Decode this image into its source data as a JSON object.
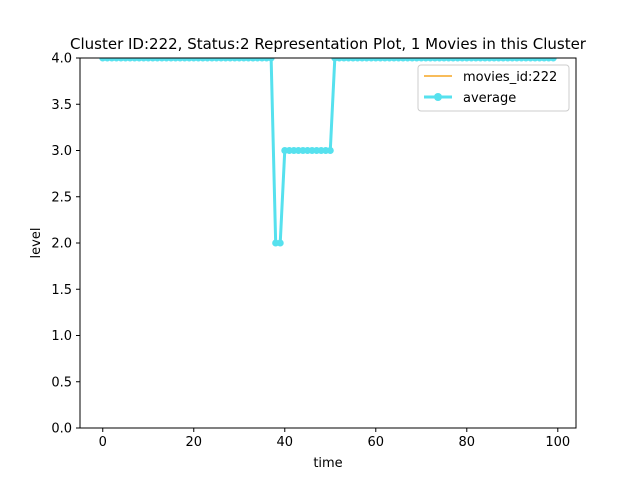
{
  "chart_data": {
    "type": "line",
    "title": "Cluster ID:222, Status:2 Representation Plot, 1 Movies in this Cluster",
    "xlabel": "time",
    "ylabel": "level",
    "xlim": [
      -5,
      104
    ],
    "ylim": [
      0,
      4
    ],
    "xticks": [
      0,
      20,
      40,
      60,
      80,
      100
    ],
    "yticks": [
      0.0,
      0.5,
      1.0,
      1.5,
      2.0,
      2.5,
      3.0,
      3.5,
      4.0
    ],
    "ytick_labels": [
      "0.0",
      "0.5",
      "1.0",
      "1.5",
      "2.0",
      "2.5",
      "3.0",
      "3.5",
      "4.0"
    ],
    "grid": false,
    "legend_position": "top-right",
    "x": [
      0,
      1,
      2,
      3,
      4,
      5,
      6,
      7,
      8,
      9,
      10,
      11,
      12,
      13,
      14,
      15,
      16,
      17,
      18,
      19,
      20,
      21,
      22,
      23,
      24,
      25,
      26,
      27,
      28,
      29,
      30,
      31,
      32,
      33,
      34,
      35,
      36,
      37,
      38,
      39,
      40,
      41,
      42,
      43,
      44,
      45,
      46,
      47,
      48,
      49,
      50,
      51,
      52,
      53,
      54,
      55,
      56,
      57,
      58,
      59,
      60,
      61,
      62,
      63,
      64,
      65,
      66,
      67,
      68,
      69,
      70,
      71,
      72,
      73,
      74,
      75,
      76,
      77,
      78,
      79,
      80,
      81,
      82,
      83,
      84,
      85,
      86,
      87,
      88,
      89,
      90,
      91,
      92,
      93,
      94,
      95,
      96,
      97,
      98,
      99
    ],
    "series": [
      {
        "name": "movies_id:222",
        "color": "#f5a623",
        "marker": "none",
        "linewidth": 1.5,
        "values": [
          4,
          4,
          4,
          4,
          4,
          4,
          4,
          4,
          4,
          4,
          4,
          4,
          4,
          4,
          4,
          4,
          4,
          4,
          4,
          4,
          4,
          4,
          4,
          4,
          4,
          4,
          4,
          4,
          4,
          4,
          4,
          4,
          4,
          4,
          4,
          4,
          4,
          4,
          2,
          2,
          3,
          3,
          3,
          3,
          3,
          3,
          3,
          3,
          3,
          3,
          3,
          4,
          4,
          4,
          4,
          4,
          4,
          4,
          4,
          4,
          4,
          4,
          4,
          4,
          4,
          4,
          4,
          4,
          4,
          4,
          4,
          4,
          4,
          4,
          4,
          4,
          4,
          4,
          4,
          4,
          4,
          4,
          4,
          4,
          4,
          4,
          4,
          4,
          4,
          4,
          4,
          4,
          4,
          4,
          4,
          4,
          4,
          4,
          4,
          4
        ]
      },
      {
        "name": "average",
        "color": "#56e1ee",
        "marker": "circle",
        "linewidth": 3,
        "values": [
          4,
          4,
          4,
          4,
          4,
          4,
          4,
          4,
          4,
          4,
          4,
          4,
          4,
          4,
          4,
          4,
          4,
          4,
          4,
          4,
          4,
          4,
          4,
          4,
          4,
          4,
          4,
          4,
          4,
          4,
          4,
          4,
          4,
          4,
          4,
          4,
          4,
          4,
          2,
          2,
          3,
          3,
          3,
          3,
          3,
          3,
          3,
          3,
          3,
          3,
          3,
          4,
          4,
          4,
          4,
          4,
          4,
          4,
          4,
          4,
          4,
          4,
          4,
          4,
          4,
          4,
          4,
          4,
          4,
          4,
          4,
          4,
          4,
          4,
          4,
          4,
          4,
          4,
          4,
          4,
          4,
          4,
          4,
          4,
          4,
          4,
          4,
          4,
          4,
          4,
          4,
          4,
          4,
          4,
          4,
          4,
          4,
          4,
          4,
          4
        ]
      }
    ]
  }
}
